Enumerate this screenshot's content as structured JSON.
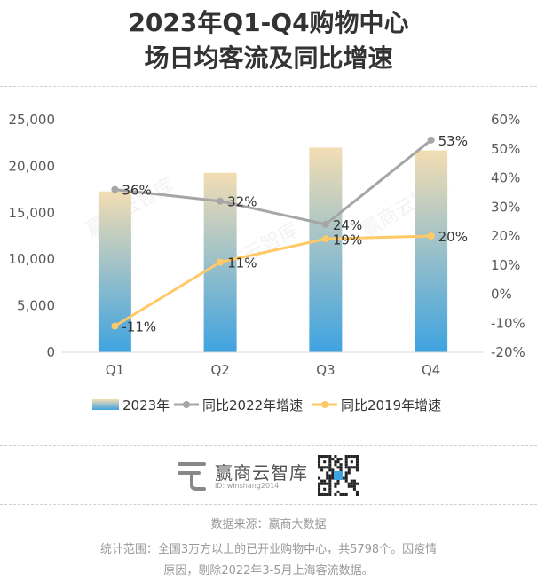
{
  "title_line1": "2023年Q1-Q4购物中心",
  "title_line2": "场日均客流及同比增速",
  "chart_data": {
    "type": "bar",
    "categories": [
      "Q1",
      "Q2",
      "Q3",
      "Q4"
    ],
    "series": [
      {
        "name": "2023年",
        "type": "bar",
        "axis": "left",
        "values": [
          17300,
          19300,
          22000,
          21700
        ]
      },
      {
        "name": "同比2022年增速",
        "type": "line",
        "axis": "right",
        "values": [
          36,
          32,
          24,
          53
        ],
        "labels": [
          "36%",
          "32%",
          "24%",
          "53%"
        ],
        "color": "#a6a6a6"
      },
      {
        "name": "同比2019年增速",
        "type": "line",
        "axis": "right",
        "values": [
          -11,
          11,
          19,
          20
        ],
        "labels": [
          "-11%",
          "11%",
          "19%",
          "20%"
        ],
        "color": "#ffc966"
      }
    ],
    "left_axis": {
      "min": 0,
      "max": 25000,
      "ticks": [
        "0",
        "5,000",
        "10,000",
        "15,000",
        "20,000",
        "25,000"
      ]
    },
    "right_axis": {
      "min": -20,
      "max": 60,
      "ticks": [
        "-20%",
        "-10%",
        "0%",
        "10%",
        "20%",
        "30%",
        "40%",
        "50%",
        "60%"
      ]
    },
    "legend_position": "bottom",
    "colors": {
      "bar_top": "#f3ddb3",
      "bar_bottom": "#3fa3e0",
      "line_2022": "#a6a6a6",
      "line_2019": "#ffc966"
    }
  },
  "watermark": "赢商云智库",
  "brand": {
    "name": "赢商云智库",
    "id": "ID: winshang2014"
  },
  "footer": {
    "source": "数据来源：赢商大数据",
    "scope_line1": "统计范围：全国3万方以上的已开业购物中心，共5798个。因疫情",
    "scope_line2": "原因，剔除2022年3-5月上海客流数据。"
  }
}
